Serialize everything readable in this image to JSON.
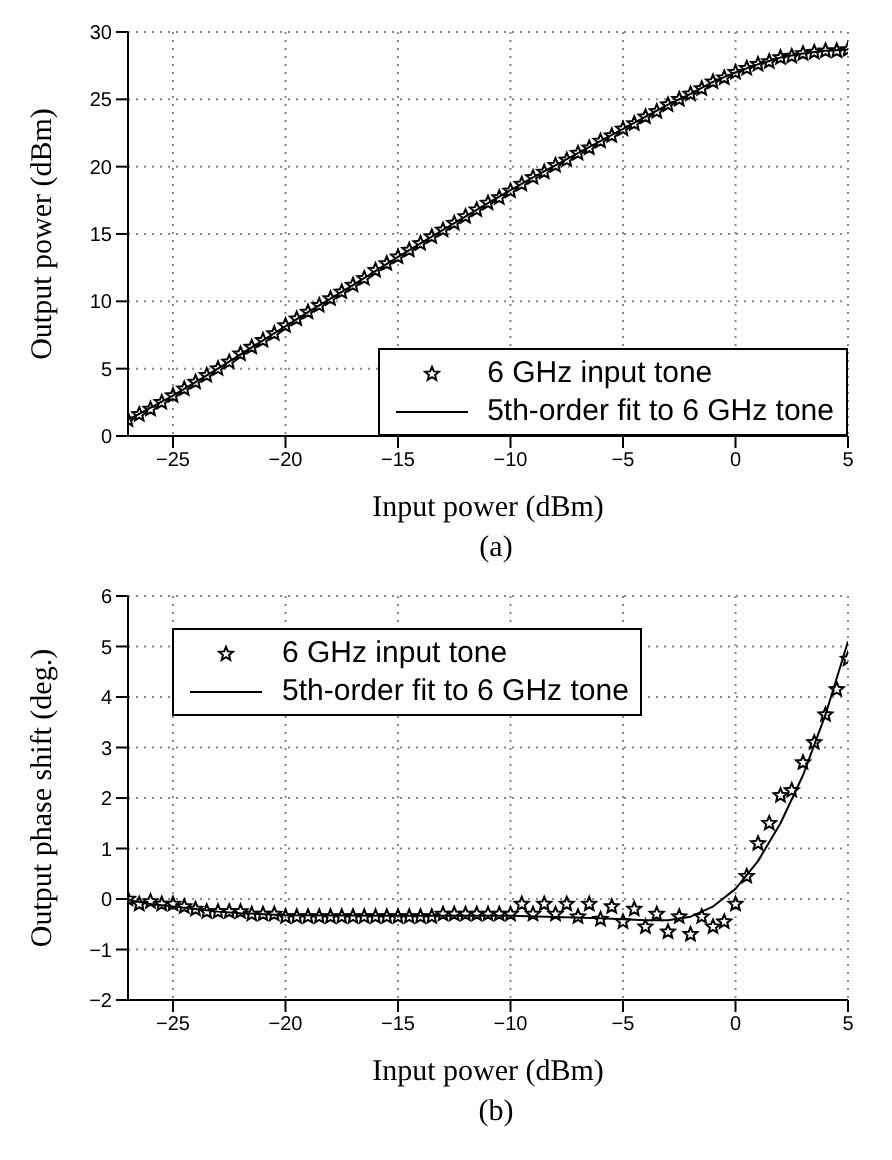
{
  "chart_data": [
    {
      "type": "scatter",
      "xlabel": "Input power (dBm)",
      "ylabel": "Output power (dBm)",
      "annotations": [
        "(a)"
      ],
      "xlim": [
        -27,
        5
      ],
      "xticks": [
        -25,
        -20,
        -15,
        -10,
        -5,
        0,
        5
      ],
      "ylim": [
        0,
        30
      ],
      "yticks": [
        0,
        5,
        10,
        15,
        20,
        25,
        30
      ],
      "grid": true,
      "legend": "bottom right",
      "series": [
        {
          "name": "6 GHz input tone",
          "type": "scatter",
          "marker": "star",
          "color": "#000000",
          "x": [
            -27,
            -26.5,
            -26,
            -25.5,
            -25,
            -24.5,
            -24,
            -23.5,
            -23,
            -22.5,
            -22,
            -21.5,
            -21,
            -20.5,
            -20,
            -19.5,
            -19,
            -18.5,
            -18,
            -17.5,
            -17,
            -16.5,
            -16,
            -15.5,
            -15,
            -14.5,
            -14,
            -13.5,
            -13,
            -12.5,
            -12,
            -11.5,
            -11,
            -10.5,
            -10,
            -9.5,
            -9,
            -8.5,
            -8,
            -7.5,
            -7,
            -6.5,
            -6,
            -5.5,
            -5,
            -4.5,
            -4,
            -3.5,
            -3,
            -2.5,
            -2,
            -1.5,
            -1,
            -0.5,
            0,
            0.5,
            1,
            1.5,
            2,
            2.5,
            3,
            3.5,
            4,
            4.5,
            5
          ],
          "values": [
            1.2,
            1.6,
            2.0,
            2.5,
            3.0,
            3.5,
            4.0,
            4.5,
            5.0,
            5.5,
            6.1,
            6.6,
            7.1,
            7.6,
            8.2,
            8.7,
            9.2,
            9.7,
            10.2,
            10.7,
            11.2,
            11.7,
            12.3,
            12.8,
            13.3,
            13.8,
            14.3,
            14.8,
            15.3,
            15.8,
            16.3,
            16.8,
            17.3,
            17.7,
            18.2,
            18.7,
            19.2,
            19.6,
            20.1,
            20.5,
            21.0,
            21.4,
            21.9,
            22.3,
            22.8,
            23.2,
            23.7,
            24.1,
            24.6,
            25.0,
            25.4,
            25.8,
            26.3,
            26.6,
            27.0,
            27.3,
            27.6,
            27.8,
            28.1,
            28.2,
            28.4,
            28.5,
            28.6,
            28.6,
            28.7
          ]
        },
        {
          "name": "5th-order fit to 6 GHz tone",
          "type": "line",
          "marker": "none",
          "line_style": "solid",
          "color": "#000000",
          "x": [
            -27,
            -25,
            -23,
            -21,
            -19,
            -17,
            -15,
            -13,
            -11,
            -9,
            -7,
            -5,
            -3,
            -2,
            -1,
            0,
            1,
            2,
            3,
            4,
            5
          ],
          "values": [
            1.2,
            3.0,
            5.0,
            7.1,
            9.2,
            11.2,
            13.3,
            15.3,
            17.3,
            19.2,
            21.0,
            22.8,
            24.6,
            25.4,
            26.3,
            27.0,
            27.6,
            28.1,
            28.4,
            28.6,
            28.7
          ]
        }
      ]
    },
    {
      "type": "scatter",
      "xlabel": "Input power (dBm)",
      "ylabel": "Output phase shift (deg.)",
      "annotations": [
        "(b)"
      ],
      "xlim": [
        -27,
        5
      ],
      "xticks": [
        -25,
        -20,
        -15,
        -10,
        -5,
        0,
        5
      ],
      "ylim": [
        -2,
        6
      ],
      "yticks": [
        -2,
        -1,
        0,
        1,
        2,
        3,
        4,
        5,
        6
      ],
      "grid": true,
      "legend": "top left",
      "series": [
        {
          "name": "6 GHz input tone",
          "type": "scatter",
          "marker": "star",
          "color": "#000000",
          "x": [
            -27,
            -26.5,
            -26,
            -25.5,
            -25,
            -24.5,
            -24,
            -23.5,
            -23,
            -22.5,
            -22,
            -21.5,
            -21,
            -20.5,
            -20,
            -19.5,
            -19,
            -18.5,
            -18,
            -17.5,
            -17,
            -16.5,
            -16,
            -15.5,
            -15,
            -14.5,
            -14,
            -13.5,
            -13,
            -12.5,
            -12,
            -11.5,
            -11,
            -10.5,
            -10,
            -9.5,
            -9,
            -8.5,
            -8,
            -7.5,
            -7,
            -6.5,
            -6,
            -5.5,
            -5,
            -4.5,
            -4,
            -3.5,
            -3,
            -2.5,
            -2,
            -1.5,
            -1,
            -0.5,
            0,
            0.5,
            1,
            1.5,
            2,
            2.5,
            3,
            3.5,
            4,
            4.5,
            5
          ],
          "values": [
            0.0,
            -0.1,
            -0.05,
            -0.1,
            -0.1,
            -0.15,
            -0.2,
            -0.25,
            -0.25,
            -0.25,
            -0.25,
            -0.3,
            -0.3,
            -0.3,
            -0.35,
            -0.35,
            -0.35,
            -0.35,
            -0.35,
            -0.35,
            -0.35,
            -0.35,
            -0.35,
            -0.35,
            -0.35,
            -0.35,
            -0.35,
            -0.35,
            -0.3,
            -0.3,
            -0.3,
            -0.3,
            -0.3,
            -0.3,
            -0.3,
            -0.1,
            -0.3,
            -0.1,
            -0.3,
            -0.1,
            -0.35,
            -0.1,
            -0.4,
            -0.15,
            -0.45,
            -0.2,
            -0.55,
            -0.3,
            -0.65,
            -0.35,
            -0.7,
            -0.35,
            -0.55,
            -0.45,
            -0.1,
            0.45,
            1.1,
            1.5,
            2.05,
            2.15,
            2.7,
            3.1,
            3.65,
            4.15,
            4.75
          ]
        },
        {
          "name": "5th-order fit to 6 GHz tone",
          "type": "line",
          "marker": "none",
          "line_style": "solid",
          "color": "#000000",
          "x": [
            -27,
            -26,
            -25,
            -24,
            -23,
            -22,
            -20,
            -15,
            -10,
            -6,
            -4,
            -3,
            -2,
            -1,
            0,
            1,
            2,
            3,
            4,
            5
          ],
          "values": [
            -0.02,
            -0.1,
            -0.15,
            -0.2,
            -0.25,
            -0.28,
            -0.32,
            -0.33,
            -0.33,
            -0.38,
            -0.42,
            -0.42,
            -0.35,
            -0.15,
            0.2,
            0.75,
            1.5,
            2.45,
            3.65,
            5.1
          ]
        }
      ]
    }
  ]
}
